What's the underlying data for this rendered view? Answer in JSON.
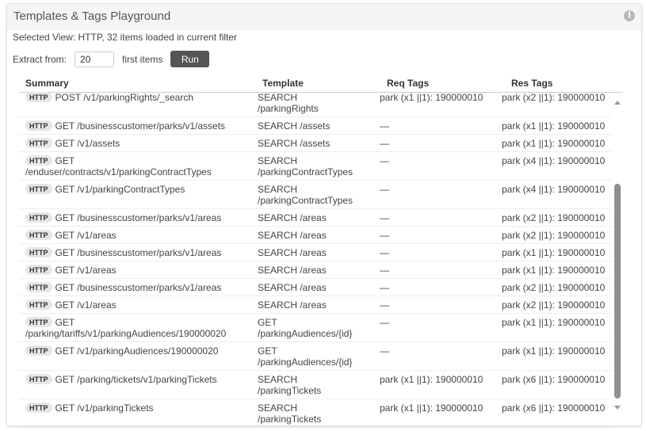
{
  "title": "Templates & Tags Playground",
  "selected_view": "Selected View: HTTP, 32 items loaded in current filter",
  "extract": {
    "label": "Extract from:",
    "value": "20",
    "suffix": "first items",
    "run": "Run"
  },
  "columns": [
    "Summary",
    "Template",
    "Req Tags",
    "Res Tags"
  ],
  "rows": [
    {
      "badge": "HTTP",
      "summary": "POST /v1/parkingRights/_search",
      "template": "SEARCH /parkingRights",
      "req": "park (x1 ||1): 190000010",
      "res": "park (x2 ||1): 190000010"
    },
    {
      "badge": "HTTP",
      "summary": "GET /businesscustomer/parks/v1/assets",
      "template": "SEARCH /assets",
      "req": "—",
      "res": "park (x1 ||1): 190000010"
    },
    {
      "badge": "HTTP",
      "summary": "GET /v1/assets",
      "template": "SEARCH /assets",
      "req": "—",
      "res": "park (x1 ||1): 190000010"
    },
    {
      "badge": "HTTP",
      "summary": "GET /enduser/contracts/v1/parkingContractTypes",
      "template": "SEARCH /parkingContractTypes",
      "req": "—",
      "res": "park (x4 ||1): 190000010"
    },
    {
      "badge": "HTTP",
      "summary": "GET /v1/parkingContractTypes",
      "template": "SEARCH /parkingContractTypes",
      "req": "—",
      "res": "park (x4 ||1): 190000010"
    },
    {
      "badge": "HTTP",
      "summary": "GET /businesscustomer/parks/v1/areas",
      "template": "SEARCH /areas",
      "req": "—",
      "res": "park (x2 ||1): 190000010"
    },
    {
      "badge": "HTTP",
      "summary": "GET /v1/areas",
      "template": "SEARCH /areas",
      "req": "—",
      "res": "park (x2 ||1): 190000010"
    },
    {
      "badge": "HTTP",
      "summary": "GET /businesscustomer/parks/v1/areas",
      "template": "SEARCH /areas",
      "req": "—",
      "res": "park (x1 ||1): 190000010"
    },
    {
      "badge": "HTTP",
      "summary": "GET /v1/areas",
      "template": "SEARCH /areas",
      "req": "—",
      "res": "park (x1 ||1): 190000010"
    },
    {
      "badge": "HTTP",
      "summary": "GET /businesscustomer/parks/v1/areas",
      "template": "SEARCH /areas",
      "req": "—",
      "res": "park (x2 ||1): 190000010"
    },
    {
      "badge": "HTTP",
      "summary": "GET /v1/areas",
      "template": "SEARCH /areas",
      "req": "—",
      "res": "park (x2 ||1): 190000010"
    },
    {
      "badge": "HTTP",
      "summary": "GET /parking/tariffs/v1/parkingAudiences/190000020",
      "template": "GET /parkingAudiences/{id}",
      "req": "—",
      "res": "park (x1 ||1): 190000010"
    },
    {
      "badge": "HTTP",
      "summary": "GET /v1/parkingAudiences/190000020",
      "template": "GET /parkingAudiences/{id}",
      "req": "—",
      "res": "park (x1 ||1): 190000010"
    },
    {
      "badge": "HTTP",
      "summary": "GET /parking/tickets/v1/parkingTickets",
      "template": "SEARCH /parkingTickets",
      "req": "park (x1 ||1): 190000010",
      "res": "park (x6 ||1): 190000010"
    },
    {
      "badge": "HTTP",
      "summary": "GET /v1/parkingTickets",
      "template": "SEARCH /parkingTickets",
      "req": "park (x1 ||1): 190000010",
      "res": "park (x6 ||1): 190000010"
    }
  ]
}
